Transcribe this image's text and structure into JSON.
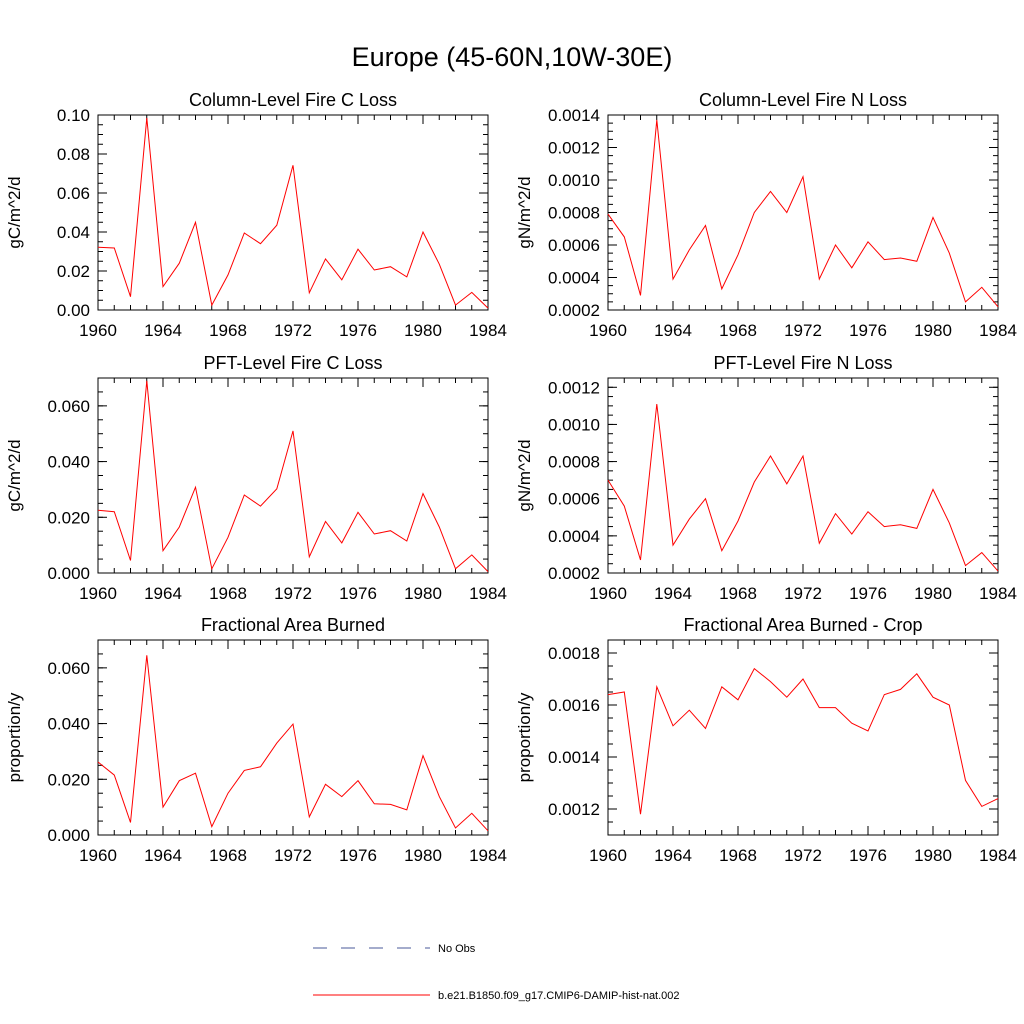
{
  "title": "Europe (45-60N,10W-30E)",
  "colors": {
    "model": "#ff0000",
    "obs": "#4a5a9a"
  },
  "legend": {
    "obs_label": "No Obs",
    "model_label": "b.e21.B1850.f09_g17.CMIP6-DAMIP-hist-nat.002"
  },
  "chart_data": [
    {
      "type": "line",
      "title": "Column-Level Fire C Loss",
      "ylabel": "gC/m^2/d",
      "xlim": [
        1960,
        1984
      ],
      "ylim": [
        0.0,
        0.1
      ],
      "xticks": [
        1960,
        1964,
        1968,
        1972,
        1976,
        1980,
        1984
      ],
      "yticks": [
        0.0,
        0.02,
        0.04,
        0.06,
        0.08,
        0.1
      ],
      "ytick_labels": [
        "0.00",
        "0.02",
        "0.04",
        "0.06",
        "0.08",
        "0.10"
      ],
      "ymin_step": 0.005,
      "x": [
        1960,
        1961,
        1962,
        1963,
        1964,
        1965,
        1966,
        1967,
        1968,
        1969,
        1970,
        1971,
        1972,
        1973,
        1974,
        1975,
        1976,
        1977,
        1978,
        1979,
        1980,
        1981,
        1982,
        1983,
        1984
      ],
      "series": [
        {
          "name": "b.e21.B1850.f09_g17.CMIP6-DAMIP-hist-nat.002",
          "values": [
            0.0322,
            0.0318,
            0.0068,
            0.0985,
            0.012,
            0.024,
            0.045,
            0.0025,
            0.018,
            0.0395,
            0.034,
            0.0435,
            0.0742,
            0.0088,
            0.0262,
            0.0155,
            0.0312,
            0.0205,
            0.0222,
            0.017,
            0.04,
            0.0235,
            0.0025,
            0.009,
            0.001
          ]
        }
      ]
    },
    {
      "type": "line",
      "title": "Column-Level Fire N Loss",
      "ylabel": "gN/m^2/d",
      "xlim": [
        1960,
        1984
      ],
      "ylim": [
        0.0002,
        0.0014
      ],
      "xticks": [
        1960,
        1964,
        1968,
        1972,
        1976,
        1980,
        1984
      ],
      "yticks": [
        0.0002,
        0.0004,
        0.0006,
        0.0008,
        0.001,
        0.0012,
        0.0014
      ],
      "ytick_labels": [
        "0.0002",
        "0.0004",
        "0.0006",
        "0.0008",
        "0.0010",
        "0.0012",
        "0.0014"
      ],
      "ymin_step": 5e-05,
      "x": [
        1960,
        1961,
        1962,
        1963,
        1964,
        1965,
        1966,
        1967,
        1968,
        1969,
        1970,
        1971,
        1972,
        1973,
        1974,
        1975,
        1976,
        1977,
        1978,
        1979,
        1980,
        1981,
        1982,
        1983,
        1984
      ],
      "series": [
        {
          "name": "b.e21.B1850.f09_g17.CMIP6-DAMIP-hist-nat.002",
          "values": [
            0.00079,
            0.00065,
            0.00029,
            0.00137,
            0.00039,
            0.00057,
            0.00072,
            0.00033,
            0.00054,
            0.0008,
            0.00093,
            0.0008,
            0.00102,
            0.00039,
            0.0006,
            0.00046,
            0.00062,
            0.00051,
            0.00052,
            0.0005,
            0.00077,
            0.00055,
            0.00025,
            0.00034,
            0.00022
          ]
        }
      ]
    },
    {
      "type": "line",
      "title": "PFT-Level Fire C Loss",
      "ylabel": "gC/m^2/d",
      "xlim": [
        1960,
        1984
      ],
      "ylim": [
        0.0,
        0.07
      ],
      "xticks": [
        1960,
        1964,
        1968,
        1972,
        1976,
        1980,
        1984
      ],
      "yticks": [
        0.0,
        0.02,
        0.04,
        0.06
      ],
      "ytick_labels": [
        "0.000",
        "0.020",
        "0.040",
        "0.060"
      ],
      "ymin_step": 0.005,
      "x": [
        1960,
        1961,
        1962,
        1963,
        1964,
        1965,
        1966,
        1967,
        1968,
        1969,
        1970,
        1971,
        1972,
        1973,
        1974,
        1975,
        1976,
        1977,
        1978,
        1979,
        1980,
        1981,
        1982,
        1983,
        1984
      ],
      "series": [
        {
          "name": "b.e21.B1850.f09_g17.CMIP6-DAMIP-hist-nat.002",
          "values": [
            0.0225,
            0.022,
            0.0045,
            0.069,
            0.008,
            0.0165,
            0.0308,
            0.0015,
            0.0128,
            0.028,
            0.024,
            0.0302,
            0.051,
            0.0058,
            0.0185,
            0.0108,
            0.0218,
            0.014,
            0.0152,
            0.0115,
            0.0285,
            0.0165,
            0.0015,
            0.0065,
            0.0005
          ]
        }
      ]
    },
    {
      "type": "line",
      "title": "PFT-Level Fire N Loss",
      "ylabel": "gN/m^2/d",
      "xlim": [
        1960,
        1984
      ],
      "ylim": [
        0.0002,
        0.00125
      ],
      "xticks": [
        1960,
        1964,
        1968,
        1972,
        1976,
        1980,
        1984
      ],
      "yticks": [
        0.0002,
        0.0004,
        0.0006,
        0.0008,
        0.001,
        0.0012
      ],
      "ytick_labels": [
        "0.0002",
        "0.0004",
        "0.0006",
        "0.0008",
        "0.0010",
        "0.0012"
      ],
      "ymin_step": 5e-05,
      "x": [
        1960,
        1961,
        1962,
        1963,
        1964,
        1965,
        1966,
        1967,
        1968,
        1969,
        1970,
        1971,
        1972,
        1973,
        1974,
        1975,
        1976,
        1977,
        1978,
        1979,
        1980,
        1981,
        1982,
        1983,
        1984
      ],
      "series": [
        {
          "name": "b.e21.B1850.f09_g17.CMIP6-DAMIP-hist-nat.002",
          "values": [
            0.0007,
            0.00056,
            0.00027,
            0.00111,
            0.00035,
            0.00049,
            0.0006,
            0.00032,
            0.00048,
            0.00069,
            0.00083,
            0.00068,
            0.00083,
            0.00036,
            0.00052,
            0.00041,
            0.00053,
            0.00045,
            0.00046,
            0.00044,
            0.00065,
            0.00047,
            0.00024,
            0.00031,
            0.00021
          ]
        }
      ]
    },
    {
      "type": "line",
      "title": "Fractional Area Burned",
      "ylabel": "proportion/y",
      "xlim": [
        1960,
        1984
      ],
      "ylim": [
        0.0,
        0.07
      ],
      "xticks": [
        1960,
        1964,
        1968,
        1972,
        1976,
        1980,
        1984
      ],
      "yticks": [
        0.0,
        0.02,
        0.04,
        0.06
      ],
      "ytick_labels": [
        "0.000",
        "0.020",
        "0.040",
        "0.060"
      ],
      "ymin_step": 0.005,
      "x": [
        1960,
        1961,
        1962,
        1963,
        1964,
        1965,
        1966,
        1967,
        1968,
        1969,
        1970,
        1971,
        1972,
        1973,
        1974,
        1975,
        1976,
        1977,
        1978,
        1979,
        1980,
        1981,
        1982,
        1983,
        1984
      ],
      "series": [
        {
          "name": "b.e21.B1850.f09_g17.CMIP6-DAMIP-hist-nat.002",
          "values": [
            0.0262,
            0.0215,
            0.0045,
            0.0645,
            0.01,
            0.0195,
            0.0222,
            0.003,
            0.015,
            0.0232,
            0.0245,
            0.033,
            0.0398,
            0.0065,
            0.0182,
            0.0138,
            0.0195,
            0.0112,
            0.011,
            0.009,
            0.0285,
            0.0138,
            0.0025,
            0.0078,
            0.0015
          ]
        }
      ]
    },
    {
      "type": "line",
      "title": "Fractional Area Burned - Crop",
      "ylabel": "proportion/y",
      "xlim": [
        1960,
        1984
      ],
      "ylim": [
        0.0011,
        0.00185
      ],
      "xticks": [
        1960,
        1964,
        1968,
        1972,
        1976,
        1980,
        1984
      ],
      "yticks": [
        0.0012,
        0.0014,
        0.0016,
        0.0018
      ],
      "ytick_labels": [
        "0.0012",
        "0.0014",
        "0.0016",
        "0.0018"
      ],
      "ymin_step": 5e-05,
      "x": [
        1960,
        1961,
        1962,
        1963,
        1964,
        1965,
        1966,
        1967,
        1968,
        1969,
        1970,
        1971,
        1972,
        1973,
        1974,
        1975,
        1976,
        1977,
        1978,
        1979,
        1980,
        1981,
        1982,
        1983,
        1984
      ],
      "series": [
        {
          "name": "b.e21.B1850.f09_g17.CMIP6-DAMIP-hist-nat.002",
          "values": [
            0.00164,
            0.00165,
            0.00118,
            0.00167,
            0.00152,
            0.00158,
            0.00151,
            0.00167,
            0.00162,
            0.00174,
            0.00169,
            0.00163,
            0.0017,
            0.00159,
            0.00159,
            0.00153,
            0.0015,
            0.00164,
            0.00166,
            0.00172,
            0.00163,
            0.0016,
            0.00131,
            0.00121,
            0.00124
          ]
        }
      ]
    }
  ]
}
